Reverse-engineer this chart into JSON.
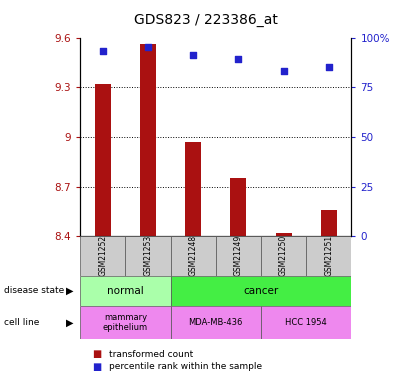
{
  "title": "GDS823 / 223386_at",
  "samples": [
    "GSM21252",
    "GSM21253",
    "GSM21248",
    "GSM21249",
    "GSM21250",
    "GSM21251"
  ],
  "bar_values": [
    9.32,
    9.56,
    8.97,
    8.75,
    8.42,
    8.56
  ],
  "scatter_values": [
    93,
    95,
    91,
    89,
    83,
    85
  ],
  "ylim_left": [
    8.4,
    9.6
  ],
  "ylim_right": [
    0,
    100
  ],
  "yticks_left": [
    8.4,
    8.7,
    9.0,
    9.3,
    9.6
  ],
  "yticks_right": [
    0,
    25,
    50,
    75,
    100
  ],
  "ytick_labels_left": [
    "8.4",
    "8.7",
    "9",
    "9.3",
    "9.6"
  ],
  "ytick_labels_right": [
    "0",
    "25",
    "50",
    "75",
    "100%"
  ],
  "hlines": [
    8.7,
    9.0,
    9.3
  ],
  "bar_color": "#aa1111",
  "scatter_color": "#2222cc",
  "bar_base": 8.4,
  "normal_color": "#aaffaa",
  "cancer_color": "#44ee44",
  "cell_color": "#ee88ee",
  "title_fontsize": 10,
  "tick_fontsize": 7.5,
  "sample_fontsize": 5.5,
  "annot_fontsize": 7.5,
  "legend_fontsize": 6.5
}
